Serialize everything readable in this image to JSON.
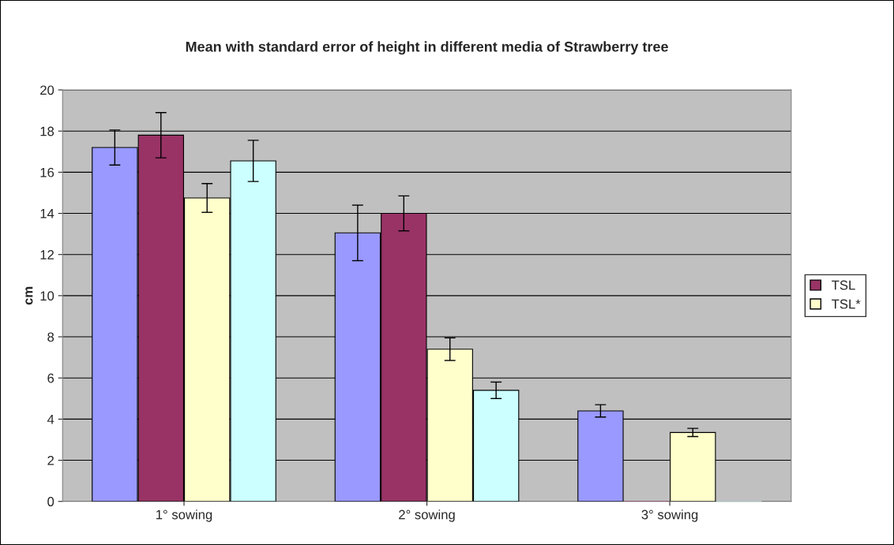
{
  "chart_data": {
    "type": "bar",
    "title": "Mean with standard error of height in different media of Strawberry tree",
    "ylabel": "cm",
    "categories": [
      "1° sowing",
      "2° sowing",
      "3° sowing"
    ],
    "series": [
      {
        "color": "#9999ff",
        "values": [
          17.2,
          13.05,
          4.4
        ],
        "errors": [
          0.85,
          1.35,
          0.3
        ]
      },
      {
        "name": "TSL",
        "color": "#993366",
        "values": [
          17.8,
          14.0,
          0
        ],
        "errors": [
          1.1,
          0.85,
          null
        ]
      },
      {
        "name": "TSL*",
        "color": "#ffffcc",
        "values": [
          14.75,
          7.4,
          3.35
        ],
        "errors": [
          0.7,
          0.55,
          0.2
        ]
      },
      {
        "color": "#ccffff",
        "values": [
          16.55,
          5.4,
          0
        ],
        "errors": [
          1.0,
          0.4,
          null
        ]
      }
    ],
    "ylim": [
      0,
      20
    ],
    "yticks": [
      0,
      2,
      4,
      6,
      8,
      10,
      12,
      14,
      16,
      18,
      20
    ],
    "grid": "y",
    "legend": "right"
  }
}
